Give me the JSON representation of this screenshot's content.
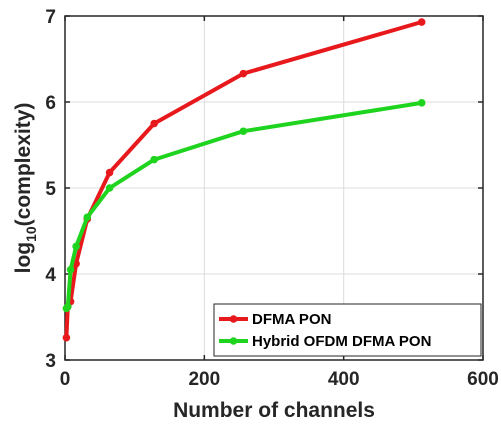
{
  "chart_data": {
    "type": "line",
    "xlabel": "Number of channels",
    "ylabel_main": "log",
    "ylabel_sub": "10",
    "ylabel_rest": "(complexity)",
    "xlim": [
      0,
      600
    ],
    "ylim": [
      3,
      7
    ],
    "xticks": [
      0,
      200,
      400,
      600
    ],
    "yticks": [
      3,
      4,
      5,
      6,
      7
    ],
    "xtick_labels": [
      "0",
      "200",
      "400",
      "600"
    ],
    "ytick_labels": [
      "3",
      "4",
      "5",
      "6",
      "7"
    ],
    "grid": true,
    "legend_position": "bottom-right",
    "series": [
      {
        "name": "DFMA PON",
        "color": "#e8191c",
        "x": [
          2,
          4,
          8,
          16,
          32,
          64,
          128,
          256,
          512
        ],
        "y": [
          3.26,
          3.62,
          3.68,
          4.12,
          4.64,
          5.18,
          5.75,
          6.33,
          6.93
        ]
      },
      {
        "name": "Hybrid OFDM DFMA PON",
        "color": "#1fd41f",
        "x": [
          2,
          4,
          8,
          16,
          32,
          64,
          128,
          256,
          512
        ],
        "y": [
          3.6,
          3.62,
          4.05,
          4.32,
          4.66,
          5.0,
          5.33,
          5.66,
          5.99
        ]
      }
    ]
  }
}
